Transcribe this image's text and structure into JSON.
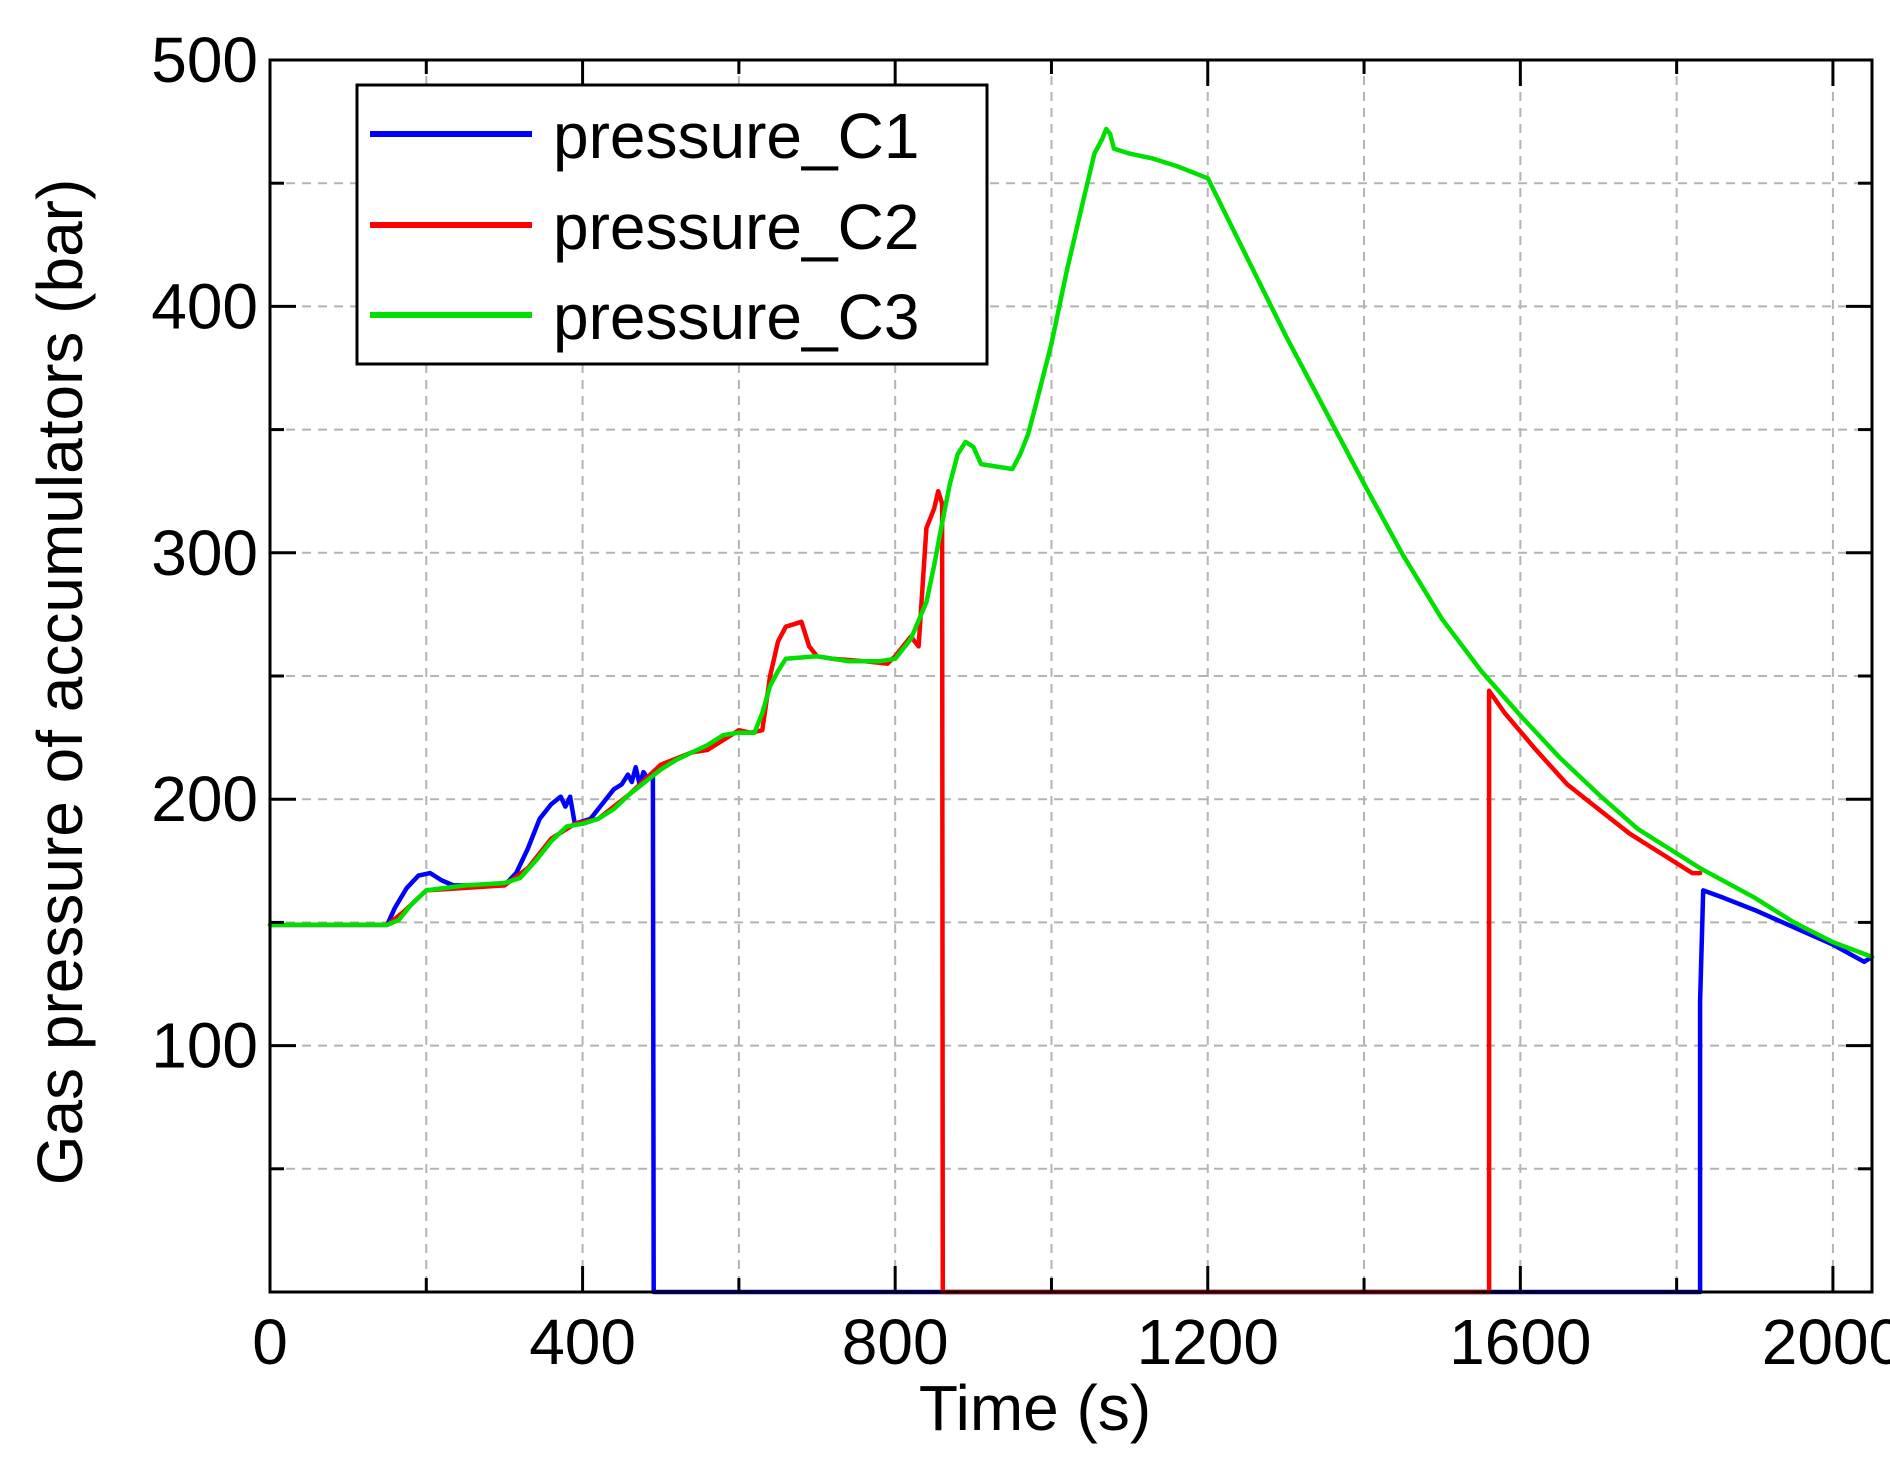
{
  "chart_data": {
    "type": "line",
    "title": "",
    "xlabel": "Time (s)",
    "ylabel": "Gas pressure of accumulators (bar)",
    "xlim": [
      0,
      2050
    ],
    "ylim": [
      0,
      500
    ],
    "x_ticks": [
      0,
      400,
      800,
      1200,
      1600,
      2000
    ],
    "y_ticks": [
      100,
      200,
      300,
      400,
      500
    ],
    "x_tick_labels": [
      "0",
      "400",
      "800",
      "1200",
      "1600",
      "2000"
    ],
    "y_tick_labels": [
      "100",
      "200",
      "300",
      "400",
      "500"
    ],
    "x_grid": [
      200,
      600,
      1000,
      1400,
      1800
    ],
    "y_grid": [
      50,
      150,
      250,
      350,
      450
    ],
    "legend_position": "top-left",
    "series": [
      {
        "name": "pressure_C1",
        "color": "#0000ff",
        "points": [
          [
            0,
            149
          ],
          [
            150,
            149
          ],
          [
            160,
            156
          ],
          [
            175,
            164
          ],
          [
            190,
            169
          ],
          [
            205,
            170
          ],
          [
            220,
            167
          ],
          [
            235,
            165
          ],
          [
            300,
            165
          ],
          [
            315,
            170
          ],
          [
            330,
            180
          ],
          [
            345,
            192
          ],
          [
            360,
            198
          ],
          [
            372,
            201
          ],
          [
            378,
            197
          ],
          [
            384,
            201
          ],
          [
            390,
            190
          ],
          [
            410,
            192
          ],
          [
            425,
            198
          ],
          [
            440,
            204
          ],
          [
            450,
            206
          ],
          [
            458,
            210
          ],
          [
            463,
            207
          ],
          [
            468,
            213
          ],
          [
            473,
            206
          ],
          [
            478,
            211
          ],
          [
            482,
            209
          ],
          [
            490,
            209
          ],
          [
            491,
            0
          ],
          [
            845,
            0
          ],
          [
            846,
            0
          ],
          [
            1830,
            0
          ],
          [
            1830,
            118
          ],
          [
            1834,
            163
          ],
          [
            1860,
            160
          ],
          [
            1900,
            155
          ],
          [
            1950,
            148
          ],
          [
            2000,
            141
          ],
          [
            2040,
            134
          ],
          [
            2050,
            136
          ]
        ]
      },
      {
        "name": "pressure_C2",
        "color": "#ff0000",
        "points": [
          [
            0,
            149
          ],
          [
            150,
            149
          ],
          [
            170,
            154
          ],
          [
            200,
            163
          ],
          [
            300,
            165
          ],
          [
            330,
            172
          ],
          [
            360,
            184
          ],
          [
            390,
            190
          ],
          [
            420,
            192
          ],
          [
            460,
            202
          ],
          [
            500,
            214
          ],
          [
            540,
            219
          ],
          [
            560,
            220
          ],
          [
            590,
            226
          ],
          [
            600,
            228
          ],
          [
            615,
            227
          ],
          [
            630,
            228
          ],
          [
            640,
            250
          ],
          [
            650,
            264
          ],
          [
            660,
            270
          ],
          [
            670,
            271
          ],
          [
            680,
            272
          ],
          [
            690,
            262
          ],
          [
            700,
            258
          ],
          [
            720,
            257
          ],
          [
            760,
            256
          ],
          [
            790,
            255
          ],
          [
            800,
            258
          ],
          [
            810,
            262
          ],
          [
            820,
            266
          ],
          [
            830,
            262
          ],
          [
            840,
            310
          ],
          [
            850,
            318
          ],
          [
            855,
            325
          ],
          [
            860,
            320
          ],
          [
            861,
            0
          ],
          [
            1560,
            0
          ],
          [
            1560,
            244
          ],
          [
            1580,
            235
          ],
          [
            1620,
            220
          ],
          [
            1660,
            206
          ],
          [
            1700,
            196
          ],
          [
            1740,
            186
          ],
          [
            1780,
            178
          ],
          [
            1820,
            170
          ],
          [
            1830,
            170
          ]
        ]
      },
      {
        "name": "pressure_C3",
        "color": "#00e000",
        "points": [
          [
            0,
            149
          ],
          [
            150,
            149
          ],
          [
            165,
            151
          ],
          [
            180,
            157
          ],
          [
            200,
            163
          ],
          [
            250,
            165
          ],
          [
            300,
            166
          ],
          [
            320,
            168
          ],
          [
            340,
            175
          ],
          [
            360,
            183
          ],
          [
            380,
            189
          ],
          [
            400,
            190
          ],
          [
            420,
            192
          ],
          [
            440,
            196
          ],
          [
            460,
            202
          ],
          [
            480,
            207
          ],
          [
            500,
            212
          ],
          [
            520,
            216
          ],
          [
            540,
            219
          ],
          [
            560,
            222
          ],
          [
            580,
            226
          ],
          [
            600,
            227
          ],
          [
            620,
            227
          ],
          [
            630,
            235
          ],
          [
            640,
            246
          ],
          [
            650,
            252
          ],
          [
            660,
            257
          ],
          [
            700,
            258
          ],
          [
            740,
            256
          ],
          [
            780,
            256
          ],
          [
            800,
            257
          ],
          [
            820,
            265
          ],
          [
            840,
            280
          ],
          [
            850,
            295
          ],
          [
            860,
            312
          ],
          [
            870,
            328
          ],
          [
            880,
            340
          ],
          [
            890,
            345
          ],
          [
            900,
            343
          ],
          [
            910,
            336
          ],
          [
            930,
            335
          ],
          [
            950,
            334
          ],
          [
            960,
            340
          ],
          [
            970,
            348
          ],
          [
            980,
            360
          ],
          [
            1000,
            385
          ],
          [
            1020,
            415
          ],
          [
            1040,
            442
          ],
          [
            1055,
            462
          ],
          [
            1065,
            468
          ],
          [
            1070,
            472
          ],
          [
            1075,
            470
          ],
          [
            1080,
            464
          ],
          [
            1100,
            462
          ],
          [
            1130,
            460
          ],
          [
            1160,
            457
          ],
          [
            1200,
            452
          ],
          [
            1250,
            420
          ],
          [
            1300,
            388
          ],
          [
            1350,
            358
          ],
          [
            1400,
            328
          ],
          [
            1450,
            299
          ],
          [
            1500,
            273
          ],
          [
            1550,
            252
          ],
          [
            1600,
            234
          ],
          [
            1650,
            217
          ],
          [
            1700,
            202
          ],
          [
            1750,
            188
          ],
          [
            1800,
            178
          ],
          [
            1830,
            172
          ],
          [
            1900,
            160
          ],
          [
            1950,
            150
          ],
          [
            2000,
            142
          ],
          [
            2050,
            136
          ]
        ]
      }
    ]
  }
}
